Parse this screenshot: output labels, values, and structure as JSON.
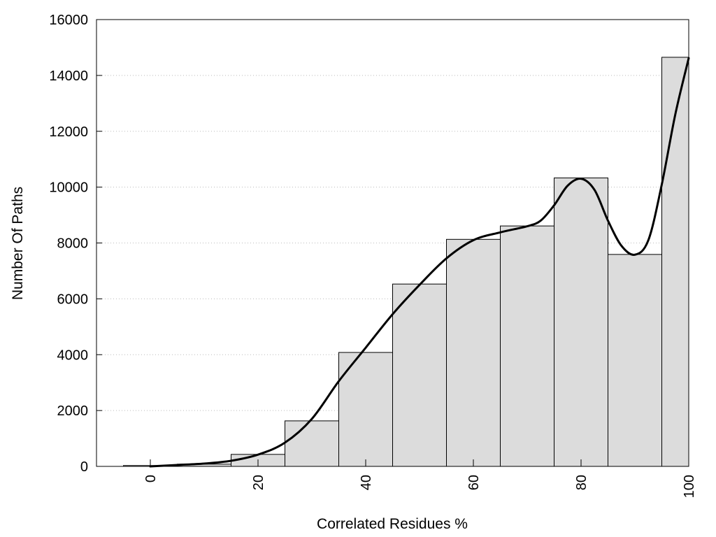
{
  "chart_data": {
    "type": "bar",
    "xlabel": "Correlated Residues %",
    "ylabel": "Number Of Paths",
    "xlim": [
      -10,
      100
    ],
    "ylim": [
      0,
      16000
    ],
    "x_ticks": [
      0,
      20,
      40,
      60,
      80,
      100
    ],
    "y_ticks": [
      0,
      2000,
      4000,
      6000,
      8000,
      10000,
      12000,
      14000,
      16000
    ],
    "grid": "horizontal-dotted",
    "bin_width": 10,
    "bins": [
      {
        "x": 0,
        "value": 30
      },
      {
        "x": 10,
        "value": 80
      },
      {
        "x": 20,
        "value": 430
      },
      {
        "x": 30,
        "value": 1630
      },
      {
        "x": 40,
        "value": 4080
      },
      {
        "x": 50,
        "value": 6530
      },
      {
        "x": 60,
        "value": 8130
      },
      {
        "x": 70,
        "value": 8610
      },
      {
        "x": 80,
        "value": 10330
      },
      {
        "x": 90,
        "value": 7590
      },
      {
        "x": 100,
        "value": 14650
      }
    ],
    "curve": {
      "type": "smooth-line",
      "points": [
        [
          0,
          0
        ],
        [
          5,
          50
        ],
        [
          10,
          100
        ],
        [
          15,
          200
        ],
        [
          20,
          420
        ],
        [
          25,
          850
        ],
        [
          30,
          1700
        ],
        [
          35,
          3050
        ],
        [
          40,
          4250
        ],
        [
          45,
          5450
        ],
        [
          50,
          6500
        ],
        [
          55,
          7450
        ],
        [
          60,
          8100
        ],
        [
          65,
          8380
        ],
        [
          70,
          8600
        ],
        [
          72.5,
          8800
        ],
        [
          75,
          9350
        ],
        [
          77.5,
          10050
        ],
        [
          80,
          10300
        ],
        [
          82.5,
          9900
        ],
        [
          85,
          8800
        ],
        [
          87.5,
          7900
        ],
        [
          90,
          7580
        ],
        [
          92.5,
          8100
        ],
        [
          95,
          10100
        ],
        [
          97.5,
          12600
        ],
        [
          100,
          14620
        ]
      ]
    },
    "colors": {
      "bar_fill": "#dcdcdc",
      "bar_stroke": "#000000",
      "line": "#000000",
      "grid": "#bbbbbb"
    }
  }
}
